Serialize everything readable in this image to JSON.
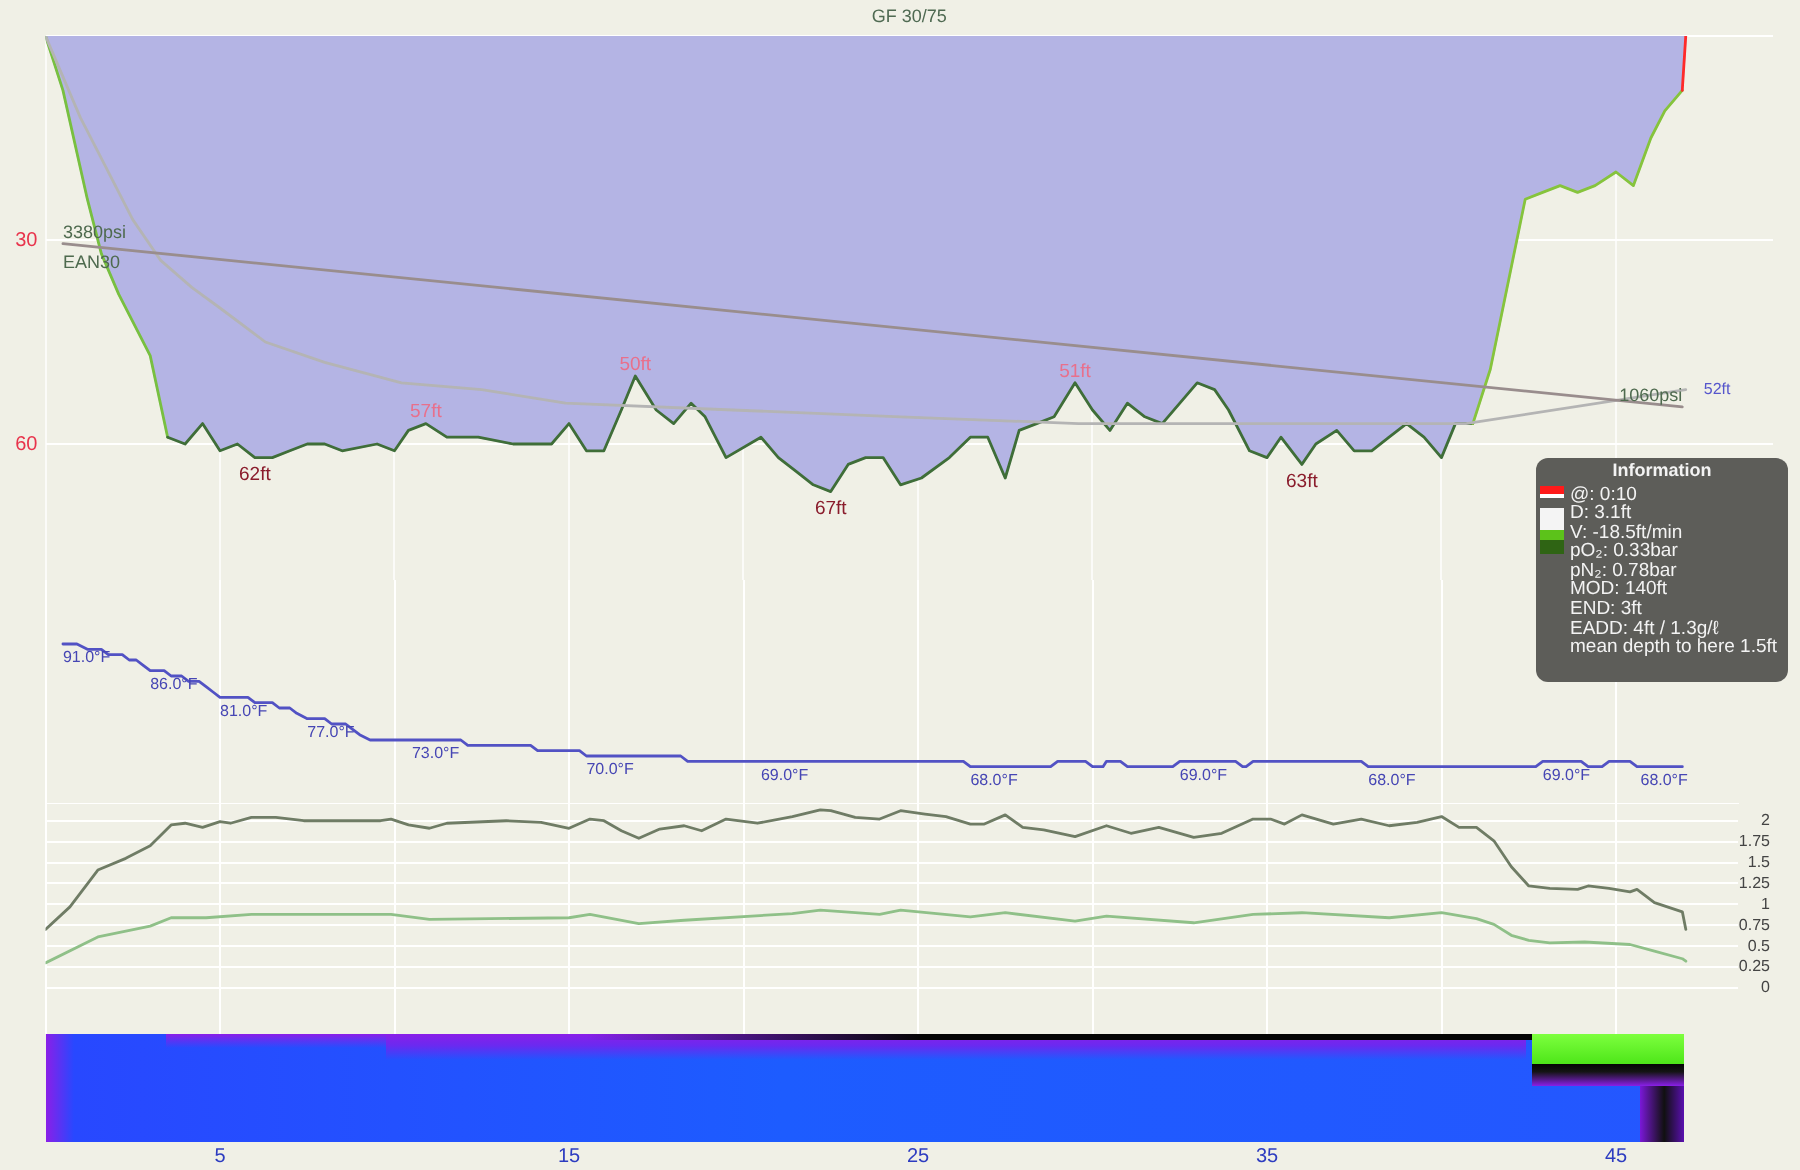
{
  "chart_data": [
    {
      "type": "area",
      "title": "GF 30/75",
      "xlim": [
        0,
        49.5
      ],
      "xticks": [
        {
          "value": 0,
          "label": null
        },
        5,
        {
          "value": 10,
          "label": null
        },
        15,
        {
          "value": 20,
          "label": null
        },
        25,
        {
          "value": 30,
          "label": null
        },
        35,
        {
          "value": 40,
          "label": null
        },
        45
      ],
      "ylim": [
        80,
        0
      ],
      "yticks": [
        {
          "value": 0,
          "label": null
        },
        30,
        60
      ],
      "y2lim": [
        -1400,
        6330
      ],
      "tick_labels": "y",
      "grid": true,
      "series": [
        {
          "x": [
            0,
            0.5,
            1.2,
            1.6,
            2.1,
            3.0,
            3.5,
            4.0,
            4.5,
            5.0,
            5.5,
            6.0,
            6.5,
            7.0,
            7.5,
            8.0,
            8.5,
            9.5,
            10.0,
            10.4,
            10.9,
            11.5,
            12.0,
            12.4,
            13.4,
            14.5,
            15.0,
            15.5,
            16.0,
            16.5,
            16.9,
            17.5,
            18.0,
            18.5,
            18.9,
            19.5,
            20.5,
            21.0,
            21.5,
            22.0,
            22.5,
            23.0,
            23.5,
            24.0,
            24.5,
            25.1,
            25.9,
            26.5,
            27.0,
            27.5,
            27.9,
            28.4,
            28.9,
            29.5,
            30.0,
            30.5,
            31.0,
            31.5,
            32.0,
            33.0,
            33.5,
            33.9,
            34.5,
            35.0,
            35.4,
            36.0,
            36.4,
            37.0,
            37.5,
            38.0,
            38.5,
            39.0,
            39.5,
            40.0,
            40.4,
            40.9,
            41.4,
            42.0,
            42.4,
            42.9,
            43.4,
            43.9,
            44.4,
            45.0,
            45.5,
            46.0,
            46.4,
            46.9,
            47.0
          ],
          "values": [
            0,
            8,
            24,
            32,
            38,
            47,
            59,
            60,
            57,
            61,
            60,
            62,
            62,
            61,
            60,
            60,
            61,
            60,
            61,
            58,
            57,
            59,
            59,
            59,
            60,
            60,
            57,
            61,
            61,
            55,
            50,
            55,
            57,
            54,
            56,
            62,
            59,
            62,
            64,
            66,
            67,
            63,
            62,
            62,
            66,
            65,
            62,
            59,
            59,
            65,
            58,
            57,
            56,
            51,
            55,
            58,
            54,
            56,
            57,
            51,
            52,
            55,
            61,
            62,
            59,
            63,
            60,
            58,
            61,
            61,
            59,
            57,
            59,
            62,
            57,
            57,
            49,
            34,
            24,
            23,
            22,
            23,
            22,
            20,
            22,
            15,
            11,
            8,
            0
          ],
          "color": "#b4b4e4",
          "value_labels": [
            null,
            null,
            null,
            null,
            null,
            null,
            null,
            null,
            null,
            null,
            null,
            "62ft",
            null,
            null,
            null,
            null,
            null,
            null,
            null,
            null,
            "57ft",
            null,
            null,
            null,
            null,
            null,
            null,
            null,
            null,
            null,
            "50ft",
            null,
            null,
            null,
            null,
            null,
            null,
            null,
            null,
            null,
            "67ft",
            null,
            null,
            null,
            null,
            null,
            null,
            null,
            null,
            null,
            null,
            null,
            null,
            "51ft",
            null,
            null,
            null,
            null,
            null,
            null,
            null,
            null,
            null,
            null,
            null,
            "63ft",
            null,
            null,
            null,
            null,
            null,
            null,
            null,
            null,
            null,
            null,
            null,
            null,
            null,
            null,
            null,
            null,
            null,
            null,
            null,
            null,
            null,
            null,
            null
          ]
        },
        {
          "type": "line",
          "x": [
            0,
            0.5,
            1.2,
            1.6,
            2.1,
            3.0,
            3.5
          ],
          "values": [
            0,
            8,
            24,
            32,
            38,
            47,
            59
          ],
          "color": "#78c040"
        },
        {
          "type": "line",
          "x": [
            3.5,
            4.0,
            4.5,
            5.0,
            5.5,
            6.0,
            6.5,
            7.0,
            7.5,
            8.0,
            8.5,
            9.5,
            10.0,
            10.4,
            10.9,
            11.5,
            12.0,
            12.4,
            13.4,
            14.5,
            15.0,
            15.5,
            16.0,
            16.5,
            16.9,
            17.5,
            18.0,
            18.5,
            18.9,
            19.5,
            20.5,
            21.0,
            21.5,
            22.0,
            22.5,
            23.0,
            23.5,
            24.0,
            24.5,
            25.1,
            25.9,
            26.5,
            27.0,
            27.5,
            27.9,
            28.4,
            28.9,
            29.5,
            30.0,
            30.5,
            31.0,
            31.5,
            32.0,
            33.0,
            33.5,
            33.9,
            34.5,
            35.0,
            35.4,
            36.0,
            36.4,
            37.0,
            37.5,
            38.0,
            38.5,
            39.0,
            39.5,
            40.0,
            40.4,
            40.9
          ],
          "values": [
            59,
            60,
            57,
            61,
            60,
            62,
            62,
            61,
            60,
            60,
            61,
            60,
            61,
            58,
            57,
            59,
            59,
            59,
            60,
            60,
            57,
            61,
            61,
            55,
            50,
            55,
            57,
            54,
            56,
            62,
            59,
            62,
            64,
            66,
            67,
            63,
            62,
            62,
            66,
            65,
            62,
            59,
            59,
            65,
            58,
            57,
            56,
            51,
            55,
            58,
            54,
            56,
            57,
            51,
            52,
            55,
            61,
            62,
            59,
            63,
            60,
            58,
            61,
            61,
            59,
            57,
            59,
            62,
            57,
            57
          ],
          "color": "#3f6e38"
        },
        {
          "type": "line",
          "x": [
            40.9,
            41.4,
            42.0,
            42.4,
            42.9,
            43.4,
            43.9,
            44.4,
            45.0,
            45.5,
            46.0,
            46.4,
            46.9
          ],
          "values": [
            57,
            49,
            34,
            24,
            23,
            22,
            23,
            22,
            20,
            22,
            15,
            11,
            8
          ],
          "color": "#86c43c"
        },
        {
          "type": "line",
          "x": [
            46.9,
            47.0
          ],
          "values": [
            8,
            0
          ],
          "color": "#ff2a2a"
        },
        {
          "type": "line",
          "x": [
            0,
            1.0,
            1.7,
            2.5,
            3.3,
            4.2,
            5.0,
            6.3,
            8.0,
            10.2,
            12.5,
            14.9,
            19.7,
            24.5,
            29.6,
            40.7,
            47.0
          ],
          "values": [
            0,
            12,
            19,
            27,
            33,
            37,
            40,
            45,
            48,
            51,
            52,
            54,
            55,
            56,
            57,
            57,
            52
          ],
          "color": "#b4b4b4",
          "value_labels": [
            null,
            null,
            null,
            null,
            null,
            null,
            null,
            null,
            null,
            null,
            null,
            null,
            null,
            null,
            null,
            null,
            "52ft"
          ]
        },
        {
          "type": "line",
          "name": "EAN30",
          "axis": "y2",
          "x": [
            0.5,
            46.9
          ],
          "values": [
            3380,
            1060
          ],
          "color": "#998d8d",
          "value_labels": [
            "3380psi",
            "1060psi"
          ]
        }
      ],
      "annotations": [
        "Information",
        "@: 0:10",
        "D: 3.1ft",
        "V: -18.5ft/min",
        "pO₂: 0.33bar",
        "pN₂: 0.78bar",
        "MOD: 140ft",
        "END: 3ft",
        "EADD: 4ft / 1.3g/ℓ",
        "mean depth to here 1.5ft"
      ]
    },
    {
      "type": "line",
      "xlim": [
        0,
        48.5
      ],
      "xticks": [
        {
          "value": 0,
          "label": null
        },
        5,
        {
          "value": 10,
          "label": null
        },
        15,
        {
          "value": 20,
          "label": null
        },
        25,
        {
          "value": 30,
          "label": null
        },
        35,
        {
          "value": 40,
          "label": null
        },
        45
      ],
      "ylim": [
        61,
        103
      ],
      "tick_labels": false,
      "grid": "x",
      "series": [
        {
          "x": [
            0.5,
            0.9,
            1.2,
            1.6,
            1.8,
            2.2,
            2.4,
            2.6,
            2.8,
            3.0,
            3.4,
            3.6,
            3.9,
            4.1,
            4.4,
            4.6,
            4.8,
            5.0,
            5.8,
            6.0,
            6.5,
            6.7,
            7.0,
            7.2,
            7.5,
            8.0,
            8.2,
            8.6,
            8.8,
            9.0,
            9.3,
            10.5,
            11.9,
            12.1,
            13.9,
            14.1,
            15.3,
            15.5,
            18.2,
            18.4,
            20.5,
            26.3,
            26.5,
            28.8,
            29.0,
            29.8,
            30.0,
            30.3,
            30.4,
            30.8,
            31.0,
            32.3,
            32.5,
            34.1,
            34.3,
            34.4,
            34.6,
            37.7,
            37.9,
            42.7,
            42.9,
            44.0,
            44.2,
            44.6,
            44.8,
            45.4,
            45.6,
            45.7,
            46.9
          ],
          "values": [
            91,
            91,
            90,
            90,
            89,
            89,
            88,
            88,
            87,
            86,
            86,
            85,
            85,
            84,
            84,
            83,
            82,
            81,
            81,
            80,
            80,
            79,
            79,
            78,
            77,
            77,
            76,
            76,
            75,
            74,
            73,
            73,
            73,
            72,
            72,
            71,
            71,
            70,
            70,
            69,
            69,
            69,
            68,
            68,
            69,
            69,
            68,
            68,
            69,
            69,
            68,
            68,
            69,
            69,
            68,
            68,
            69,
            69,
            68,
            68,
            69,
            69,
            68,
            68,
            69,
            69,
            68,
            68,
            68
          ],
          "color": "#5252c4",
          "value_labels": [
            "91.0°F",
            null,
            null,
            null,
            null,
            null,
            null,
            null,
            null,
            "86.0°F",
            null,
            null,
            null,
            null,
            null,
            null,
            null,
            "81.0°F",
            null,
            null,
            null,
            null,
            null,
            null,
            "77.0°F",
            null,
            null,
            null,
            null,
            null,
            null,
            "73.0°F",
            null,
            null,
            null,
            null,
            null,
            "70.0°F",
            null,
            null,
            "69.0°F",
            null,
            "68.0°F",
            null,
            null,
            null,
            null,
            null,
            null,
            null,
            null,
            null,
            "69.0°F",
            null,
            null,
            null,
            null,
            null,
            "68.0°F",
            null,
            "69.0°F",
            null,
            null,
            null,
            null,
            null,
            null,
            "68.0°F",
            null
          ]
        }
      ]
    },
    {
      "type": "line",
      "xlim": [
        0,
        48.5
      ],
      "xticks": [
        {
          "value": 0,
          "label": null
        },
        5,
        {
          "value": 10,
          "label": null
        },
        15,
        {
          "value": 20,
          "label": null
        },
        25,
        {
          "value": 30,
          "label": null
        },
        35,
        {
          "value": 40,
          "label": null
        },
        45
      ],
      "y2lim": [
        0,
        2.2
      ],
      "y2ticks": [
        0,
        0.25,
        0.5,
        0.75,
        1,
        1.25,
        1.5,
        1.75,
        2
      ],
      "grid": true,
      "series": [
        {
          "axis": "y2",
          "x": [
            0,
            0.7,
            1.5,
            2.3,
            3.0,
            3.6,
            4.0,
            4.5,
            5.0,
            5.3,
            5.9,
            6.6,
            7.4,
            9.6,
            9.9,
            10.4,
            11.0,
            11.5,
            13.2,
            14.2,
            15.0,
            15.6,
            16.0,
            16.5,
            17.0,
            17.6,
            18.3,
            18.8,
            19.5,
            20.4,
            21.4,
            22.2,
            22.5,
            23.2,
            23.9,
            24.5,
            25.2,
            25.8,
            26.5,
            26.9,
            27.5,
            28.0,
            28.6,
            29.5,
            30.4,
            31.1,
            31.9,
            32.9,
            33.7,
            34.6,
            35.1,
            35.5,
            36.0,
            36.9,
            37.7,
            38.5,
            39.3,
            40.0,
            40.5,
            41.0,
            41.5,
            42.0,
            42.5,
            43.1,
            43.9,
            44.2,
            44.8,
            45.4,
            45.6,
            46.1,
            46.9,
            47.0
          ],
          "values": [
            0.7,
            0.97,
            1.41,
            1.55,
            1.7,
            1.95,
            1.97,
            1.92,
            1.99,
            1.97,
            2.04,
            2.04,
            2.0,
            2.0,
            2.02,
            1.95,
            1.91,
            1.97,
            2.0,
            1.98,
            1.91,
            2.02,
            2.0,
            1.88,
            1.79,
            1.9,
            1.94,
            1.88,
            2.02,
            1.97,
            2.05,
            2.13,
            2.12,
            2.04,
            2.02,
            2.12,
            2.08,
            2.05,
            1.96,
            1.96,
            2.07,
            1.92,
            1.89,
            1.81,
            1.94,
            1.85,
            1.92,
            1.8,
            1.85,
            2.02,
            2.02,
            1.96,
            2.07,
            1.96,
            2.02,
            1.94,
            1.98,
            2.05,
            1.92,
            1.92,
            1.76,
            1.45,
            1.22,
            1.19,
            1.18,
            1.22,
            1.19,
            1.15,
            1.18,
            1.02,
            0.91,
            0.7
          ],
          "color": "#6f7c65"
        },
        {
          "axis": "y2",
          "x": [
            0,
            1.5,
            3.0,
            3.6,
            4.6,
            5.9,
            9.9,
            11.0,
            15.0,
            15.6,
            17.0,
            18.3,
            21.4,
            22.2,
            23.9,
            24.5,
            26.5,
            27.5,
            29.5,
            30.4,
            32.9,
            34.6,
            36.0,
            38.5,
            40.0,
            41.0,
            41.5,
            42.0,
            42.5,
            43.1,
            44.1,
            45.4,
            46.1,
            46.9,
            47.0
          ],
          "values": [
            0.3,
            0.61,
            0.74,
            0.84,
            0.84,
            0.88,
            0.88,
            0.82,
            0.84,
            0.88,
            0.77,
            0.81,
            0.89,
            0.93,
            0.88,
            0.93,
            0.85,
            0.9,
            0.8,
            0.86,
            0.78,
            0.88,
            0.9,
            0.84,
            0.9,
            0.83,
            0.76,
            0.63,
            0.57,
            0.54,
            0.55,
            0.52,
            0.44,
            0.35,
            0.32
          ],
          "color": "#8fc088"
        }
      ]
    }
  ]
}
